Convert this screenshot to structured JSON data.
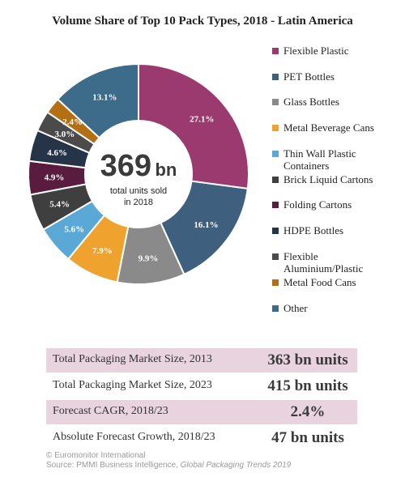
{
  "chart_data": {
    "type": "pie",
    "title": "Volume Share of Top 10 Pack Types, 2018 - Latin America",
    "center_value": "369",
    "center_unit": "bn",
    "center_caption_line1": "total units sold",
    "center_caption_line2": "in 2018",
    "legend_position": "right",
    "slices": [
      {
        "name": "Flexible Plastic",
        "value": 27.1,
        "label": "27.1%",
        "color": "#9b3a6e",
        "legend_lines": [
          "Flexible Plastic"
        ]
      },
      {
        "name": "PET Bottles",
        "value": 16.1,
        "label": "16.1%",
        "color": "#3e5f7e",
        "legend_lines": [
          "PET Bottles"
        ]
      },
      {
        "name": "Glass Bottles",
        "value": 9.9,
        "label": "9.9%",
        "color": "#8a8a8a",
        "legend_lines": [
          "Glass Bottles"
        ]
      },
      {
        "name": "Metal Beverage Cans",
        "value": 7.9,
        "label": "7.9%",
        "color": "#efa22e",
        "legend_lines": [
          "Metal Beverage Cans"
        ]
      },
      {
        "name": "Thin Wall Plastic Containers",
        "value": 5.6,
        "label": "5.6%",
        "color": "#5aa8d6",
        "legend_lines": [
          "Thin Wall Plastic",
          "Containers"
        ]
      },
      {
        "name": "Brick Liquid Cartons",
        "value": 5.4,
        "label": "5.4%",
        "color": "#3f3f3f",
        "legend_lines": [
          "Brick Liquid Cartons"
        ]
      },
      {
        "name": "Folding Cartons",
        "value": 4.9,
        "label": "4.9%",
        "color": "#5a1c3e",
        "legend_lines": [
          "Folding Cartons"
        ]
      },
      {
        "name": "HDPE Bottles",
        "value": 4.6,
        "label": "4.6%",
        "color": "#263447",
        "legend_lines": [
          "HDPE Bottles"
        ]
      },
      {
        "name": "Flexible Aluminium/Plastic",
        "value": 3.0,
        "label": "3.0%",
        "color": "#4b4b4b",
        "legend_lines": [
          "Flexible",
          "Aluminium/Plastic"
        ]
      },
      {
        "name": "Metal Food Cans",
        "value": 2.4,
        "label": "2.4%",
        "color": "#b46f15",
        "legend_lines": [
          "Metal Food Cans"
        ]
      },
      {
        "name": "Other",
        "value": 13.1,
        "label": "13.1%",
        "color": "#3d6b8a",
        "legend_lines": [
          "Other"
        ]
      }
    ]
  },
  "stats": [
    {
      "label": "Total Packaging Market Size, 2013",
      "value": "363 bn units"
    },
    {
      "label": "Total Packaging Market Size, 2023",
      "value": "415 bn units"
    },
    {
      "label": "Forecast CAGR, 2018/23",
      "value": "2.4%"
    },
    {
      "label": "Absolute Forecast Growth, 2018/23",
      "value": "47 bn units"
    }
  ],
  "footer": {
    "copyright": "© Euromonitor International",
    "source_prefix": "Source: PMMI Business Intelligence, ",
    "source_title": "Global Packaging Trends 2019"
  }
}
